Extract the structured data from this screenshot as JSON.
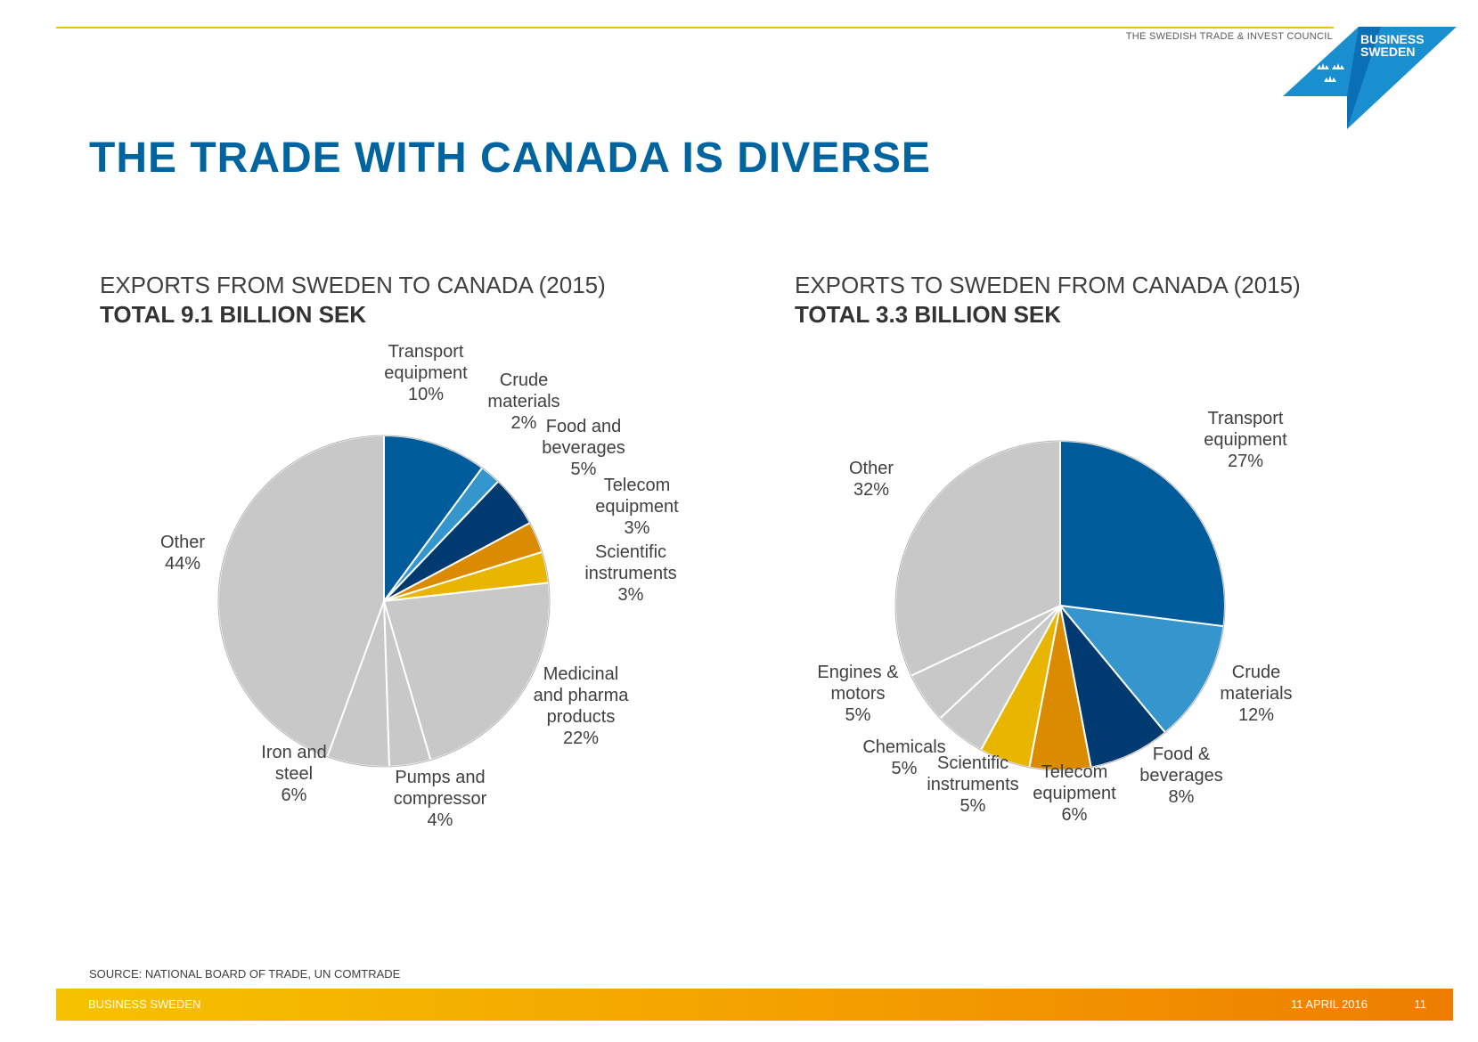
{
  "header": {
    "council_text": "THE SWEDISH TRADE & INVEST COUNCIL",
    "logo_line1": "BUSINESS",
    "logo_line2": "SWEDEN"
  },
  "title": "THE TRADE WITH CANADA IS DIVERSE",
  "colors": {
    "title_blue": "#0064a0",
    "dark_blue": "#003a70",
    "mid_blue": "#005b9a",
    "light_blue": "#3596cd",
    "orange": "#db8b00",
    "yellow": "#e8b600",
    "grey": "#c8c8c8",
    "footer_orange": "#f39c00"
  },
  "chart_data": [
    {
      "type": "pie",
      "title": "EXPORTS FROM SWEDEN TO CANADA (2015)",
      "subtitle": "TOTAL 9.1 BILLION SEK",
      "slices": [
        {
          "name": "Transport equipment",
          "value": 10,
          "label_lines": [
            "Transport",
            "equipment",
            "10%"
          ]
        },
        {
          "name": "Crude materials",
          "value": 2,
          "label_lines": [
            "Crude",
            "materials",
            "2%"
          ]
        },
        {
          "name": "Food and beverages",
          "value": 5,
          "label_lines": [
            "Food and",
            "beverages",
            "5%"
          ]
        },
        {
          "name": "Telecom equipment",
          "value": 3,
          "label_lines": [
            "Telecom",
            "equipment",
            "3%"
          ]
        },
        {
          "name": "Scientific instruments",
          "value": 3,
          "label_lines": [
            "Scientific",
            "instruments",
            "3%"
          ]
        },
        {
          "name": "Medicinal and pharma products",
          "value": 22,
          "label_lines": [
            "Medicinal",
            "and pharma",
            "products",
            "22%"
          ]
        },
        {
          "name": "Pumps and compressor",
          "value": 4,
          "label_lines": [
            "Pumps and",
            "compressor",
            "4%"
          ]
        },
        {
          "name": "Iron and steel",
          "value": 6,
          "label_lines": [
            "Iron and",
            "steel",
            "6%"
          ]
        },
        {
          "name": "Other",
          "value": 44,
          "label_lines": [
            "Other",
            "44%"
          ]
        }
      ]
    },
    {
      "type": "pie",
      "title": "EXPORTS TO SWEDEN FROM CANADA (2015)",
      "subtitle": "TOTAL 3.3 BILLION SEK",
      "slices": [
        {
          "name": "Transport equipment",
          "value": 27,
          "label_lines": [
            "Transport",
            "equipment",
            "27%"
          ]
        },
        {
          "name": "Crude materials",
          "value": 12,
          "label_lines": [
            "Crude",
            "materials",
            "12%"
          ]
        },
        {
          "name": "Food & beverages",
          "value": 8,
          "label_lines": [
            "Food &",
            "beverages",
            "8%"
          ]
        },
        {
          "name": "Telecom equipment",
          "value": 6,
          "label_lines": [
            "Telecom",
            "equipment",
            "6%"
          ]
        },
        {
          "name": "Scientific instruments",
          "value": 5,
          "label_lines": [
            "Scientific",
            "instruments",
            "5%"
          ]
        },
        {
          "name": "Chemicals",
          "value": 5,
          "label_lines": [
            "Chemicals",
            "5%"
          ]
        },
        {
          "name": "Engines & motors",
          "value": 5,
          "label_lines": [
            "Engines &",
            "motors",
            "5%"
          ]
        },
        {
          "name": "Other",
          "value": 32,
          "label_lines": [
            "Other",
            "32%"
          ]
        }
      ]
    }
  ],
  "source": "SOURCE: NATIONAL BOARD OF TRADE, UN COMTRADE",
  "footer": {
    "org": "BUSINESS SWEDEN",
    "date": "11 APRIL 2016",
    "page": "11"
  }
}
